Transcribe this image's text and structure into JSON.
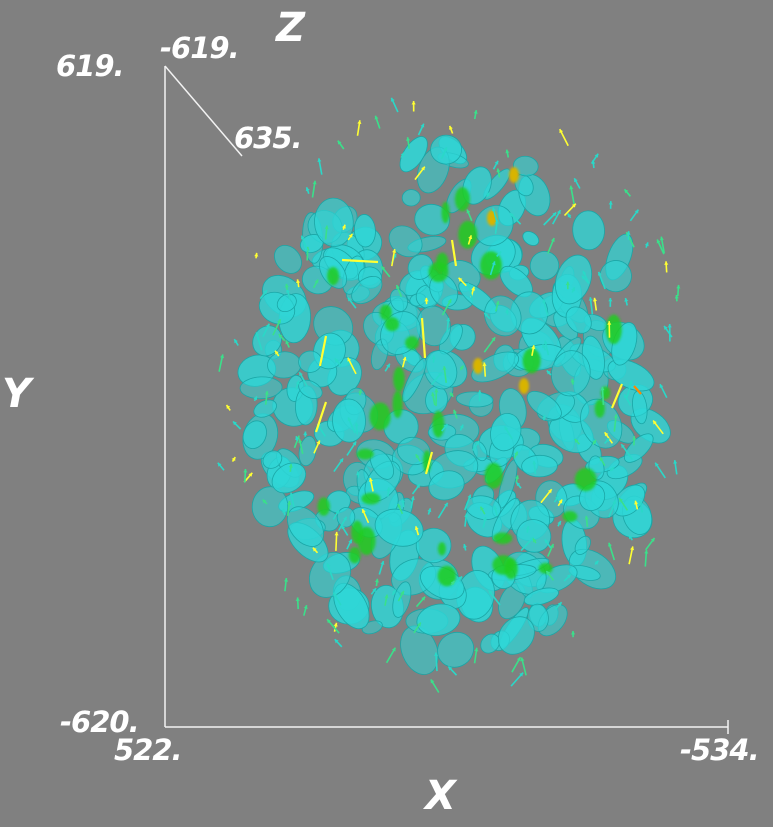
{
  "axes": {
    "x": {
      "name": "X",
      "min_label": "522.",
      "max_label": "-534."
    },
    "y": {
      "name": "Y",
      "top_label": "619.",
      "bottom_label": "-620."
    },
    "z": {
      "name": "Z",
      "near_label": "-619.",
      "far_label": "635."
    }
  },
  "colors": {
    "background": "#808080",
    "axis_line": "#f2f2f2",
    "isosurface": "#2fd6d6",
    "isosurface_mid": "#22cc22",
    "isosurface_high": "#d8b400",
    "vector_low": "#2ad8c8",
    "vector_mid": "#3ae08a",
    "vector_high": "#ffff33",
    "vector_peak": "#ff8800"
  },
  "legend": []
}
